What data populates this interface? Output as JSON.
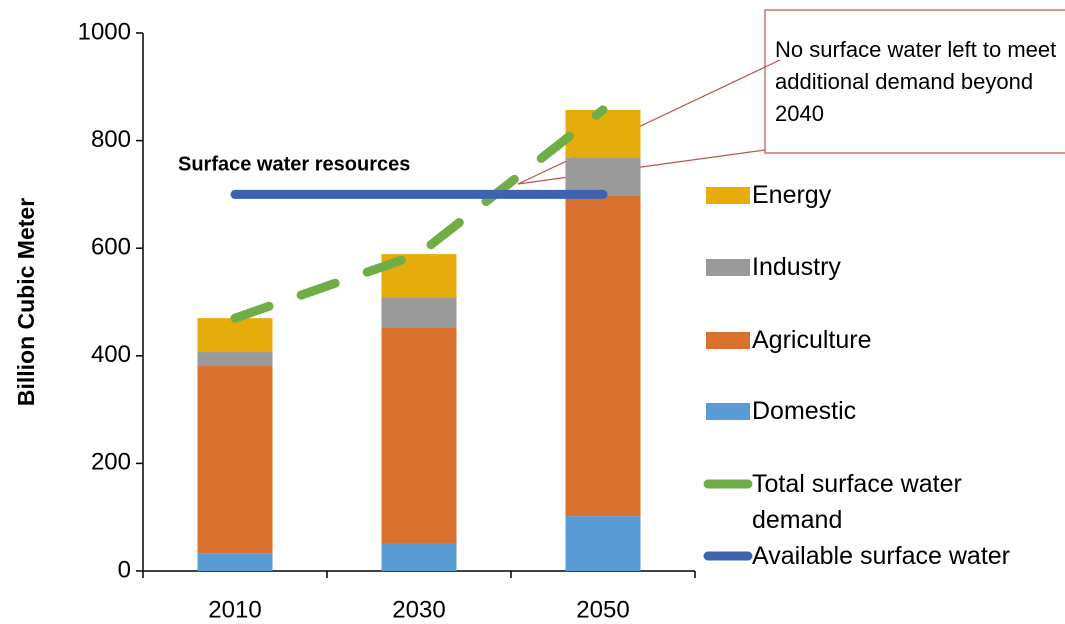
{
  "chart_data": {
    "type": "bar",
    "stacked": true,
    "y_label": "Billion Cubic Meter",
    "categories": [
      "2010",
      "2030",
      "2050"
    ],
    "ylim": [
      0,
      1000
    ],
    "yticks": [
      0,
      200,
      400,
      600,
      800,
      1000
    ],
    "series": [
      {
        "name": "Domestic",
        "color": "#5b9bd5",
        "type": "bar",
        "values": [
          33,
          52,
          102
        ]
      },
      {
        "name": "Agriculture",
        "color": "#d9722e",
        "type": "bar",
        "values": [
          348,
          401,
          595
        ]
      },
      {
        "name": "Industry",
        "color": "#9a9a9a",
        "type": "bar",
        "values": [
          26,
          56,
          72
        ]
      },
      {
        "name": "Energy",
        "color": "#e6ac0c",
        "type": "bar",
        "values": [
          63,
          80,
          88
        ]
      },
      {
        "name": "Total surface water demand",
        "color": "#70ad47",
        "type": "line",
        "dashed": true,
        "values": [
          470,
          589,
          857
        ]
      },
      {
        "name": "Available surface water",
        "color": "#3f62b0",
        "type": "line",
        "dashed": false,
        "values": [
          700,
          700,
          700
        ]
      }
    ],
    "annotations": [
      {
        "text": "Surface water resources"
      },
      {
        "text": "No surface  water left to meet additional demand beyond 2040"
      }
    ]
  }
}
